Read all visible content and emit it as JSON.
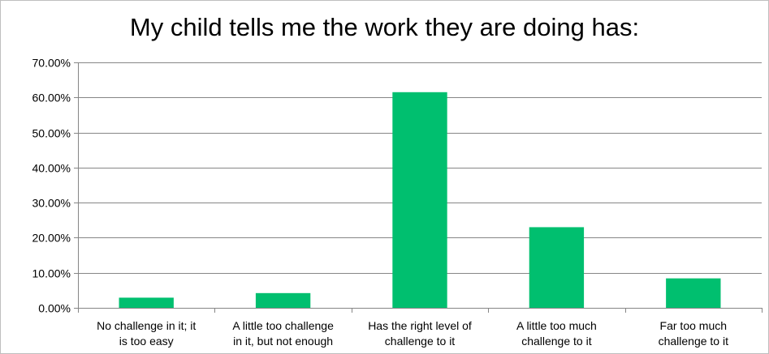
{
  "chart_data": {
    "type": "bar",
    "title": "My child tells me the work they are doing has:",
    "categories": [
      [
        "No challenge in it; it",
        "is too easy"
      ],
      [
        "A little too challenge",
        "in it, but not enough"
      ],
      [
        "Has the right level of",
        "challenge to it"
      ],
      [
        "A little too much",
        "challenge to it"
      ],
      [
        "Far too much",
        "challenge to it"
      ]
    ],
    "series": [
      {
        "values": [
          2.9,
          4.2,
          61.5,
          23.0,
          8.4
        ]
      }
    ],
    "y_ticks": [
      "0.00%",
      "10.00%",
      "20.00%",
      "30.00%",
      "40.00%",
      "50.00%",
      "60.00%",
      "70.00%"
    ],
    "ylim": [
      0,
      70
    ],
    "grid": true,
    "bar_color": "#00bf6f",
    "grid_color": "#868686",
    "legend": "none"
  }
}
